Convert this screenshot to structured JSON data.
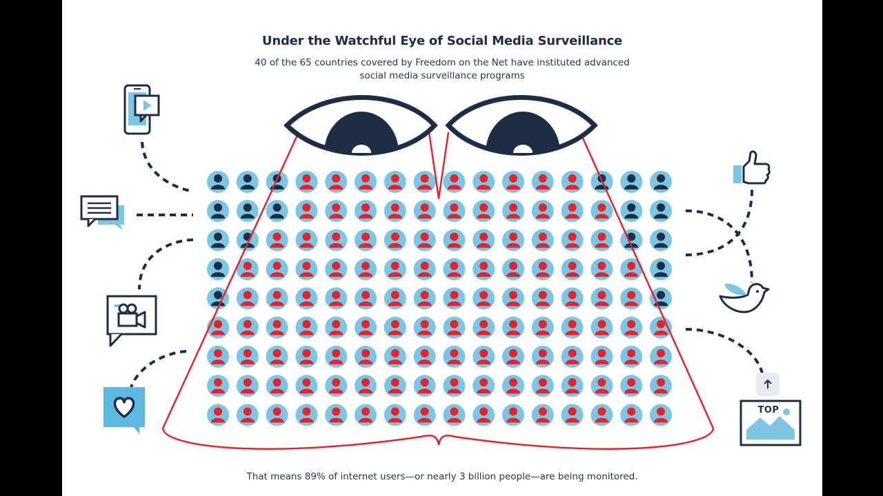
{
  "title": "Under the Watchful Eye of Social Media Surveillance",
  "subtitle": {
    "line1": "40 of the 65 countries covered by Freedom on the Net have instituted advanced",
    "line2": "social media surveillance programs"
  },
  "footer": "That means 89% of internet users—or nearly 3 billion people—are being monitored.",
  "top_button_label": "TOP",
  "grid": {
    "rows": 9,
    "cols": 16,
    "monitored_share_percent": 89
  },
  "colors": {
    "navy": "#1d2d44",
    "red": "#e4232b",
    "light_blue": "#7cc6e4",
    "cyan_accent": "#5db9e0"
  },
  "icons": {
    "left": [
      "phone-video-icon",
      "chat-bubble-icon",
      "video-camera-bubble-icon",
      "heart-bubble-icon"
    ],
    "right": [
      "thumbs-up-icon",
      "bird-icon",
      "picture-frame-icon"
    ],
    "center": [
      "left-eye-icon",
      "right-eye-icon"
    ]
  }
}
